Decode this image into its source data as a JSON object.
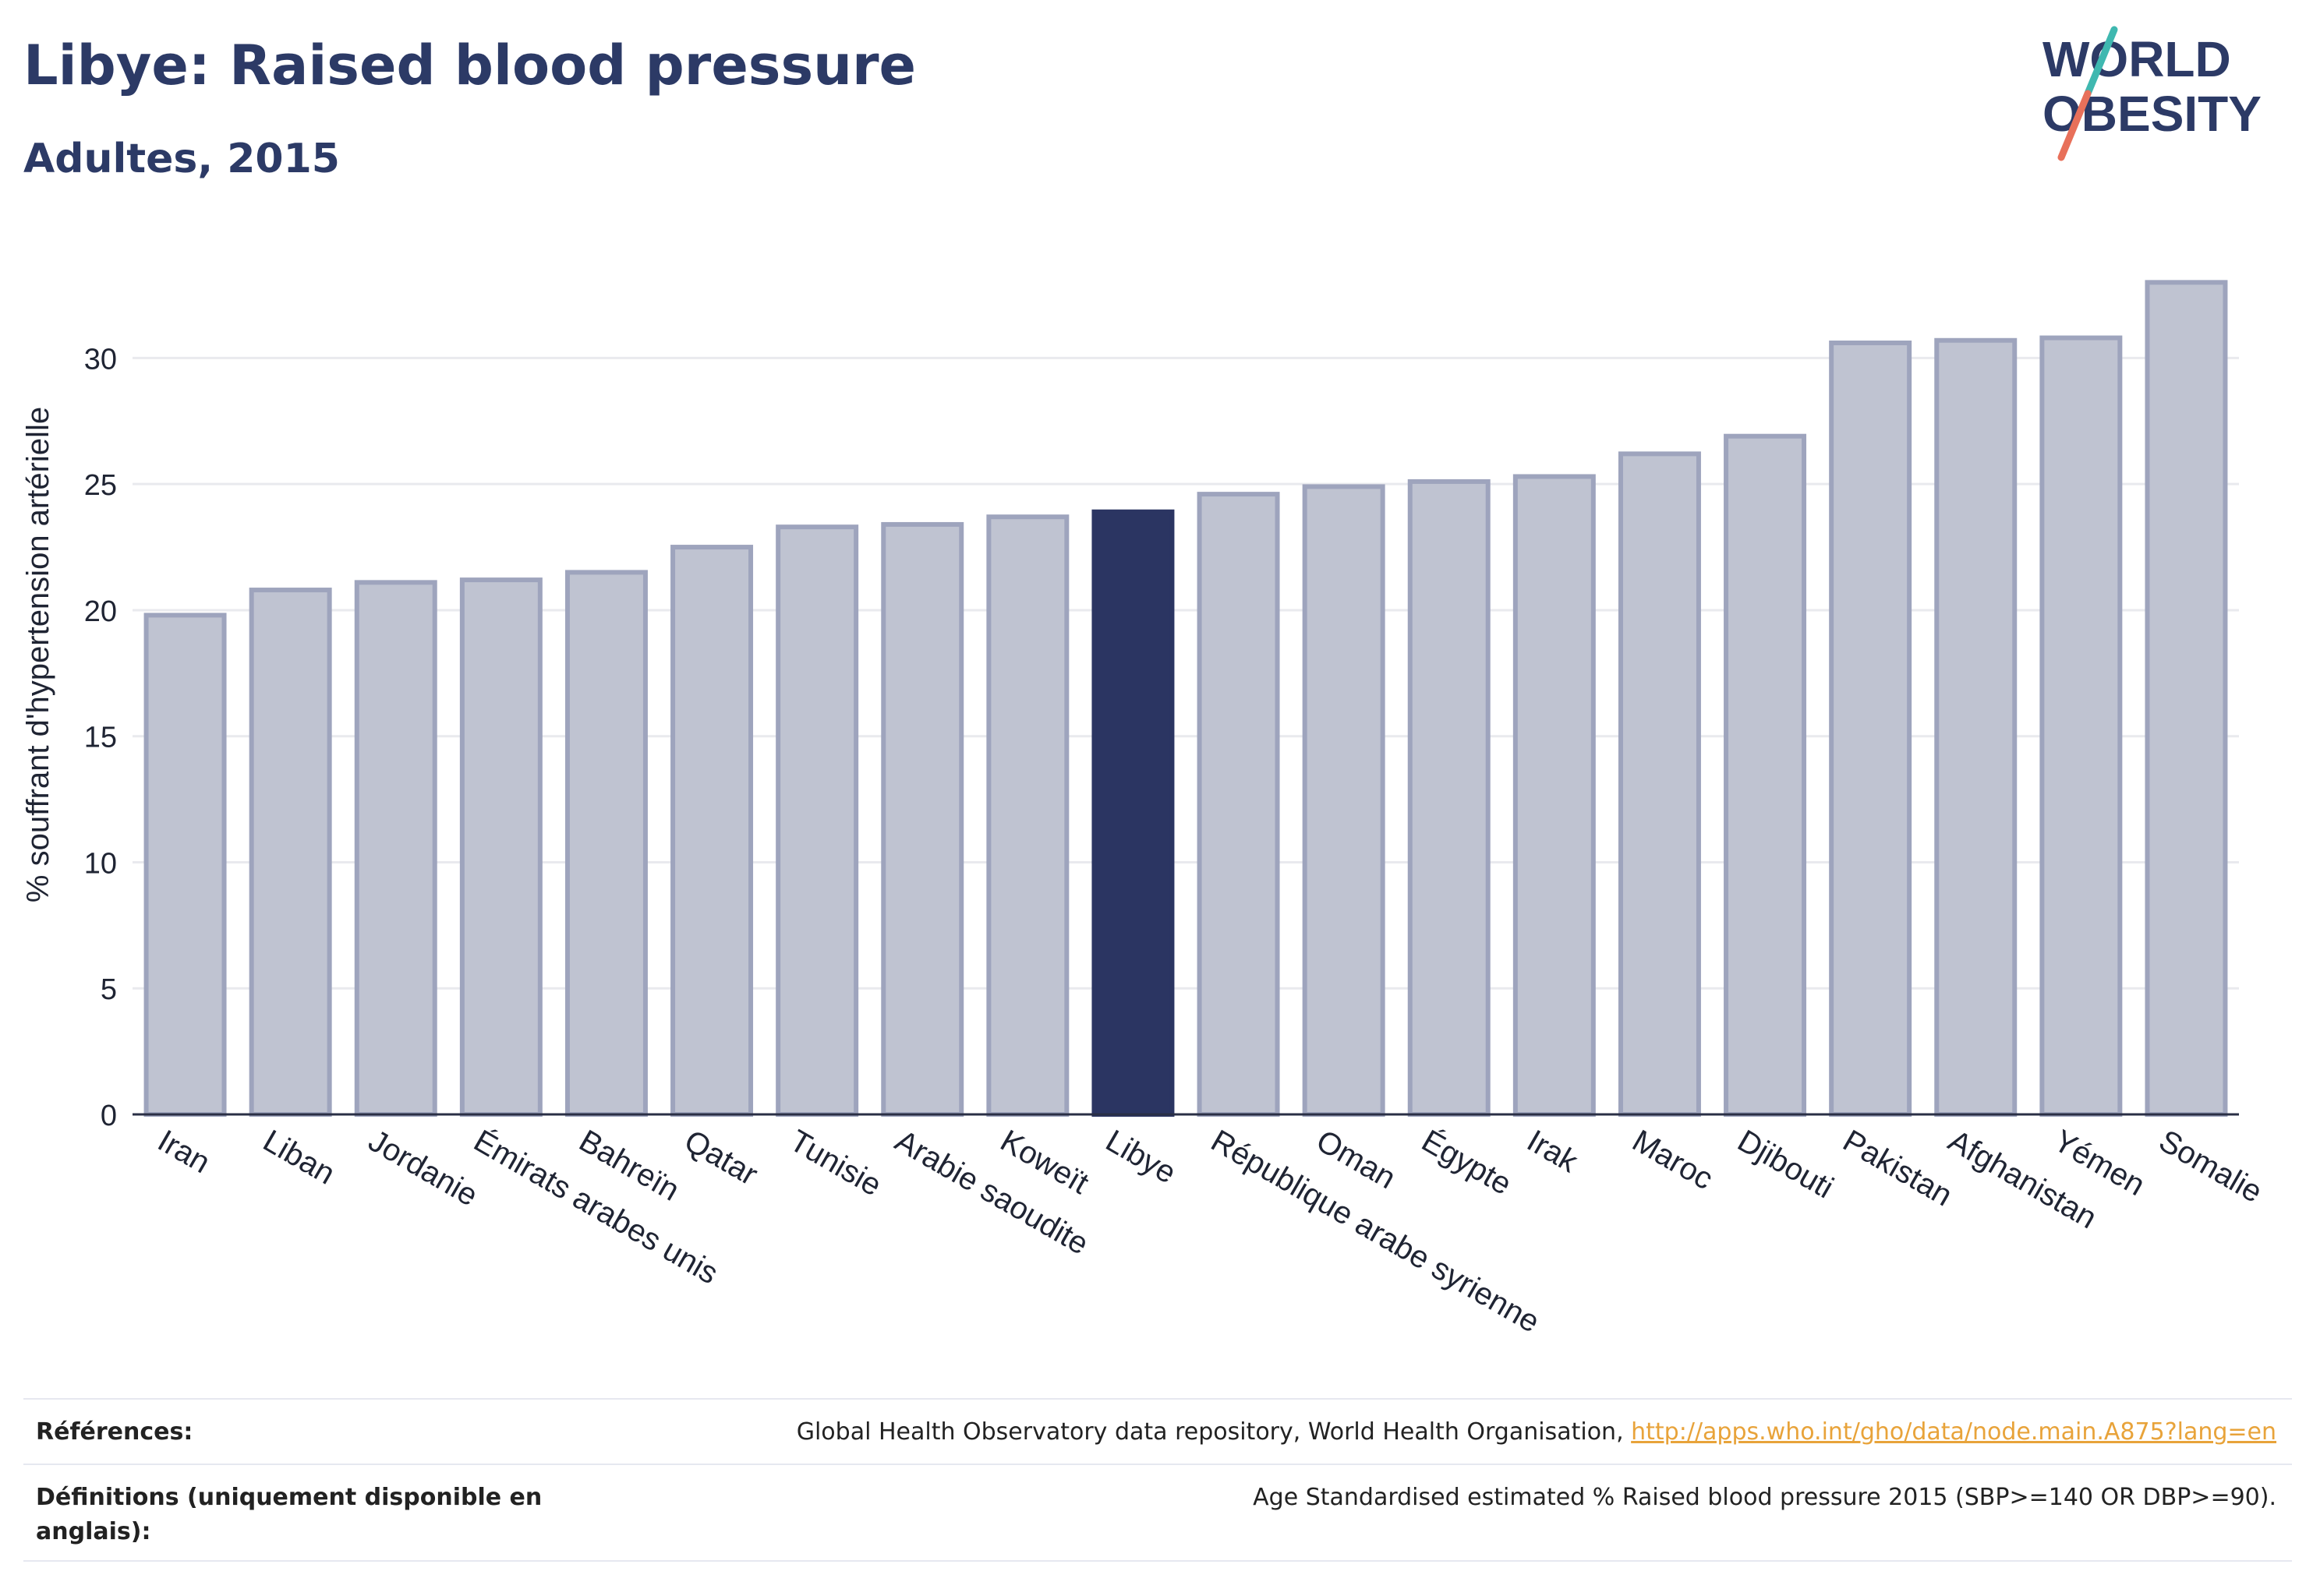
{
  "header": {
    "title": "Libye: Raised blood pressure",
    "subtitle": "Adultes, 2015"
  },
  "logo": {
    "line1": "WORLD",
    "line2": "OBESITY",
    "colors": {
      "text": "#2c3a66",
      "slash_top": "#3fb8b0",
      "slash_bottom": "#e8705a"
    }
  },
  "chart_data": {
    "type": "bar",
    "categories": [
      "Iran",
      "Liban",
      "Jordanie",
      "Émirats arabes unis",
      "Bahreïn",
      "Qatar",
      "Tunisie",
      "Arabie saoudite",
      "Koweït",
      "Libye",
      "République arabe syrienne",
      "Oman",
      "Égypte",
      "Irak",
      "Maroc",
      "Djibouti",
      "Pakistan",
      "Afghanistan",
      "Yémen",
      "Somalie"
    ],
    "values": [
      19.8,
      20.8,
      21.1,
      21.2,
      21.5,
      22.5,
      23.3,
      23.4,
      23.7,
      23.9,
      24.6,
      24.9,
      25.1,
      25.3,
      26.2,
      26.9,
      30.6,
      30.7,
      30.8,
      33.0
    ],
    "highlight": "Libye",
    "ylabel": "% souffrant d'hypertension artérielle",
    "xlabel": "",
    "ylim": [
      0,
      34
    ],
    "yticks": [
      0,
      5,
      10,
      15,
      20,
      25,
      30
    ],
    "grid": true,
    "colors": {
      "bar": "#bfc3d1",
      "bar_border": "#9ea4bd",
      "highlight": "#2b3562",
      "grid": "#e9eaee",
      "axis": "#2a2f45"
    }
  },
  "references": {
    "label": "Références:",
    "text": "Global Health Observatory data repository, World Health Organisation, ",
    "link": "http://apps.who.int/gho/data/node.main.A875?lang=en"
  },
  "definitions": {
    "label": "Définitions (uniquement disponible en anglais):",
    "text": "Age Standardised estimated % Raised blood pressure 2015 (SBP>=140 OR DBP>=90)."
  }
}
